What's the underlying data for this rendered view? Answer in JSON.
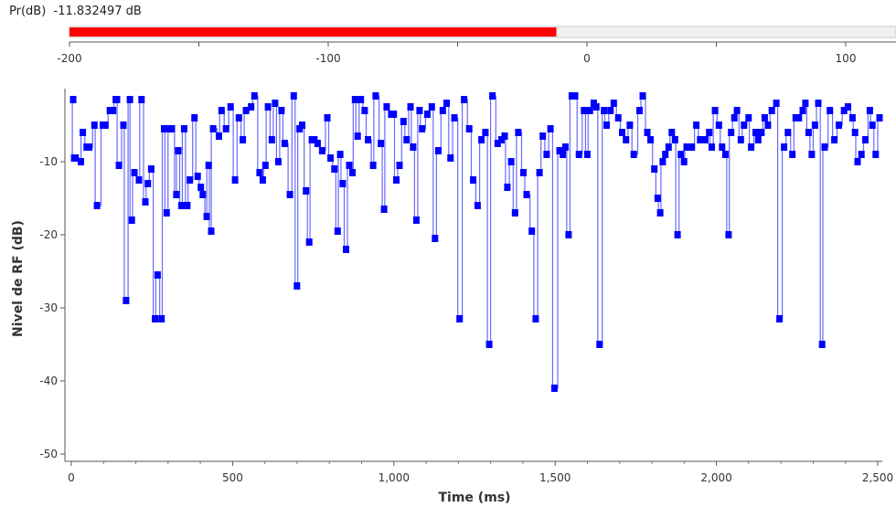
{
  "meter": {
    "label": "Pr(dB)",
    "value_text": "-11.832497 dB",
    "value": -11.832497,
    "unit": "dB",
    "scale_ticks": [
      -200,
      -100,
      0,
      100
    ],
    "range": [
      -200,
      125
    ],
    "bar_color": "#ff0000",
    "track_color": "#f0f0f0"
  },
  "chart_data": {
    "type": "line",
    "xlabel": "Time (ms)",
    "ylabel": "Nivel de RF (dB)",
    "xlim": [
      0,
      2500
    ],
    "ylim": [
      -51,
      8
    ],
    "xticks": [
      0,
      500,
      1000,
      1500,
      2000,
      2500
    ],
    "xtick_labels": [
      "0",
      "500",
      "1,000",
      "1,500",
      "2,000",
      "2,500"
    ],
    "yticks": [
      -50,
      -40,
      -30,
      -20,
      -10
    ],
    "ytick_labels": [
      "-50",
      "-40",
      "-30",
      "-20",
      "-10"
    ],
    "grid": false,
    "line_color": "#0000ff",
    "series": [
      {
        "x": [
          0,
          3,
          8,
          24,
          30,
          42,
          50,
          66,
          74,
          92,
          100,
          114,
          124,
          132,
          136,
          142,
          156,
          164,
          176,
          182,
          190,
          204,
          212,
          224,
          232,
          242,
          254,
          262,
          274,
          282,
          290,
          300,
          306,
          320,
          326,
          336,
          344,
          354,
          362,
          376,
          386,
          396,
          402,
          414,
          420,
          428,
          434,
          452,
          460,
          474,
          488,
          502,
          514,
          526,
          536,
          552,
          562,
          578,
          588,
          596,
          604,
          616,
          626,
          636,
          646,
          656,
          672,
          684,
          694,
          702,
          710,
          722,
          732,
          740,
          748,
          758,
          772,
          788,
          798,
          810,
          820,
          828,
          836,
          846,
          856,
          866,
          874,
          882,
          892,
          904,
          914,
          930,
          938,
          954,
          964,
          972,
          986,
          994,
          1002,
          1012,
          1024,
          1034,
          1046,
          1054,
          1064,
          1074,
          1082,
          1098,
          1112,
          1122,
          1132,
          1146,
          1158,
          1170,
          1182,
          1198,
          1212,
          1228,
          1240,
          1254,
          1266,
          1278,
          1290,
          1300,
          1316,
          1328,
          1338,
          1346,
          1358,
          1370,
          1380,
          1396,
          1406,
          1422,
          1434,
          1446,
          1456,
          1468,
          1480,
          1492,
          1508,
          1518,
          1526,
          1536,
          1546,
          1556,
          1568,
          1584,
          1594,
          1602,
          1614,
          1622,
          1632,
          1646,
          1654,
          1666,
          1676,
          1690,
          1702,
          1714,
          1726,
          1738,
          1756,
          1766,
          1780,
          1790,
          1802,
          1812,
          1820,
          1828,
          1836,
          1846,
          1856,
          1866,
          1874,
          1884,
          1894,
          1902,
          1918,
          1932,
          1944,
          1960,
          1972,
          1980,
          1990,
          2002,
          2012,
          2022,
          2032,
          2040,
          2050,
          2058,
          2070,
          2080,
          2094,
          2102,
          2116,
          2124,
          2134,
          2144,
          2154,
          2166,
          2180,
          2190,
          2204,
          2216,
          2230,
          2240,
          2250,
          2262,
          2270,
          2280,
          2290,
          2300,
          2310,
          2322,
          2330,
          2346,
          2360,
          2374,
          2390,
          2402,
          2416,
          2424,
          2432,
          2444,
          2456,
          2470,
          2478,
          2488,
          2500
        ],
        "y": [
          -1.5,
          -9.5,
          -9.5,
          -10,
          -6,
          -8,
          -8,
          -5,
          -16,
          -5,
          -5,
          -3,
          -3,
          -1.5,
          -1.5,
          -10.5,
          -5,
          -29,
          -1.5,
          -18,
          -11.5,
          -12.5,
          -1.5,
          -15.5,
          -13,
          -11,
          -31.5,
          -25.5,
          -31.5,
          -5.5,
          -17,
          -5.5,
          -5.5,
          -14.5,
          -8.5,
          -16,
          -5.5,
          -16,
          -12.5,
          -4,
          -12,
          -13.5,
          -14.5,
          -17.5,
          -10.5,
          -19.5,
          -5.5,
          -6.5,
          -3,
          -5.5,
          -2.5,
          -12.5,
          -4,
          -7,
          -3,
          -2.5,
          -1,
          -11.5,
          -12.5,
          -10.5,
          -2.5,
          -7,
          -2,
          -10,
          -3,
          -7.5,
          -14.5,
          -1,
          -27,
          -5.5,
          -5,
          -14,
          -21,
          -7,
          -7,
          -7.5,
          -8.5,
          -4,
          -9.5,
          -11,
          -19.5,
          -9,
          -13,
          -22,
          -10.5,
          -11.5,
          -1.5,
          -6.5,
          -1.5,
          -3,
          -7,
          -10.5,
          -1,
          -7.5,
          -16.5,
          -2.5,
          -3.5,
          -3.5,
          -12.5,
          -10.5,
          -4.5,
          -7,
          -2.5,
          -8,
          -18,
          -3,
          -5.5,
          -3.5,
          -2.5,
          -20.5,
          -8.5,
          -3,
          -2,
          -9.5,
          -4,
          -31.5,
          -1.5,
          -5.5,
          -12.5,
          -16,
          -7,
          -6,
          -35,
          -1,
          -7.5,
          -7,
          -6.5,
          -13.5,
          -10,
          -17,
          -6,
          -11.5,
          -14.5,
          -19.5,
          -31.5,
          -11.5,
          -6.5,
          -9,
          -5.5,
          -41,
          -8.5,
          -9,
          -8,
          -20,
          -1,
          -1,
          -9,
          -3,
          -9,
          -3,
          -2,
          -2.5,
          -35,
          -3,
          -5,
          -3,
          -2,
          -4,
          -6,
          -7,
          -5,
          -9,
          -3,
          -1,
          -6,
          -7,
          -11,
          -15,
          -17,
          -10,
          -9,
          -8,
          -6,
          -7,
          -20,
          -9,
          -10,
          -8,
          -8,
          -5,
          -7,
          -7,
          -6,
          -8,
          -3,
          -5,
          -8,
          -9,
          -20,
          -6,
          -4,
          -3,
          -7,
          -5,
          -4,
          -8,
          -6,
          -7,
          -6,
          -4,
          -5,
          -3,
          -2,
          -31.5,
          -8,
          -6,
          -9,
          -4,
          -4,
          -3,
          -2,
          -6,
          -9,
          -5,
          -2,
          -35,
          -8,
          -3,
          -7,
          -5,
          -3,
          -2.5,
          -4,
          -6,
          -10,
          -9,
          -7,
          -3,
          -5,
          -9,
          -4
        ]
      }
    ]
  }
}
